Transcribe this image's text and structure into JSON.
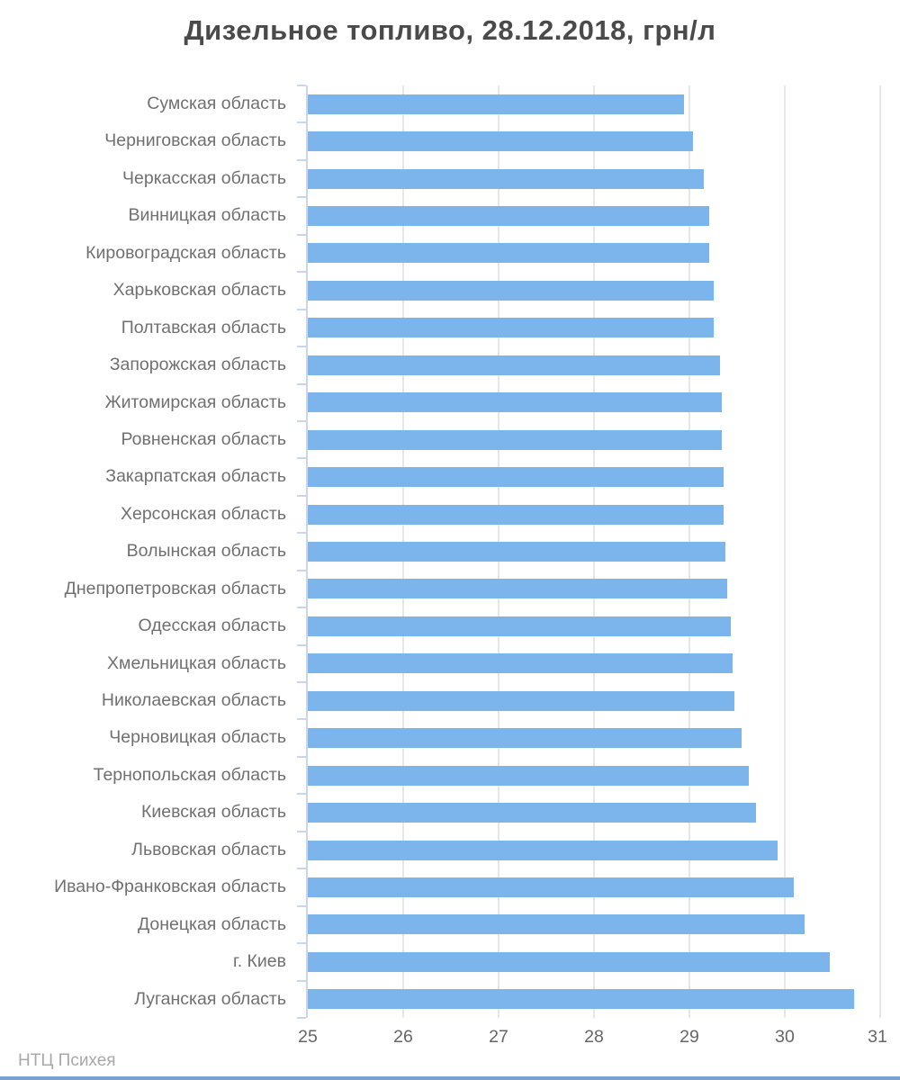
{
  "page": {
    "background": "#ffffff"
  },
  "chart_data": {
    "type": "bar",
    "orientation": "horizontal",
    "title": "Дизельное топливо, 28.12.2018, грн/л",
    "categories": [
      "Сумская область",
      "Черниговская область",
      "Черкасская область",
      "Винницкая область",
      "Кировоградская область",
      "Харьковская область",
      "Полтавская область",
      "Запорожская область",
      "Житомирская область",
      "Ровненская область",
      "Закарпатская область",
      "Херсонская область",
      "Волынская область",
      "Днепропетровская область",
      "Одесская область",
      "Хмельницкая область",
      "Николаевская область",
      "Черновицкая область",
      "Тернопольская область",
      "Киевская область",
      "Львовская область",
      "Ивано-Франковская область",
      "Донецкая область",
      "г. Киев",
      "Луганская область"
    ],
    "values": [
      28.94,
      29.04,
      29.15,
      29.21,
      29.21,
      29.25,
      29.25,
      29.32,
      29.34,
      29.34,
      29.36,
      29.36,
      29.38,
      29.4,
      29.43,
      29.45,
      29.47,
      29.55,
      29.62,
      29.7,
      29.92,
      30.09,
      30.21,
      30.47,
      30.73
    ],
    "xlabel": "",
    "ylabel": "",
    "xlim": [
      25,
      31
    ],
    "x_ticks": [
      "25",
      "26",
      "27",
      "28",
      "29",
      "30",
      "31"
    ],
    "grid": true,
    "legend": "none",
    "bar_color": "#7cb5ec",
    "grid_color": "#e7e7e7",
    "axis_line_color": "#ccd6eb",
    "title_color": "#4a4a4a",
    "category_label_color": "#707070",
    "tick_label_color": "#666666"
  },
  "footer": {
    "watermark": "НТЦ Психея",
    "watermark_color": "#a8a8a8",
    "bottom_bar_color": "#7aa1d2"
  }
}
